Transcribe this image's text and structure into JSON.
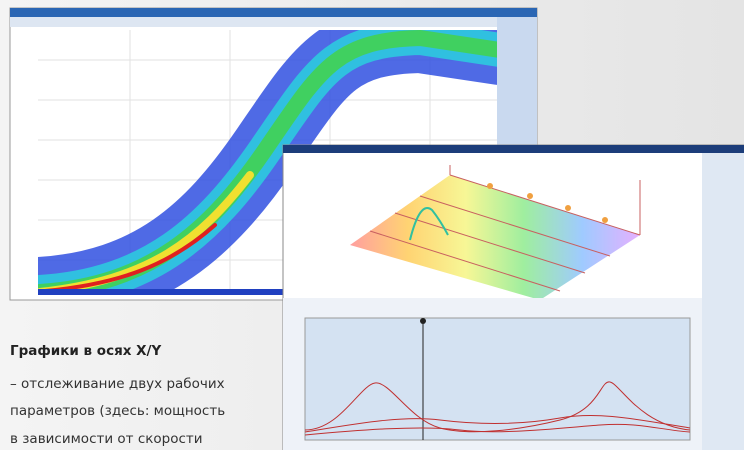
{
  "caption": {
    "title": "Графики в осях X/Y",
    "lines": [
      "– отслеживание двух рабочих",
      "параметров  (здесь: мощность",
      "в зависимости от скорости"
    ]
  }
}
